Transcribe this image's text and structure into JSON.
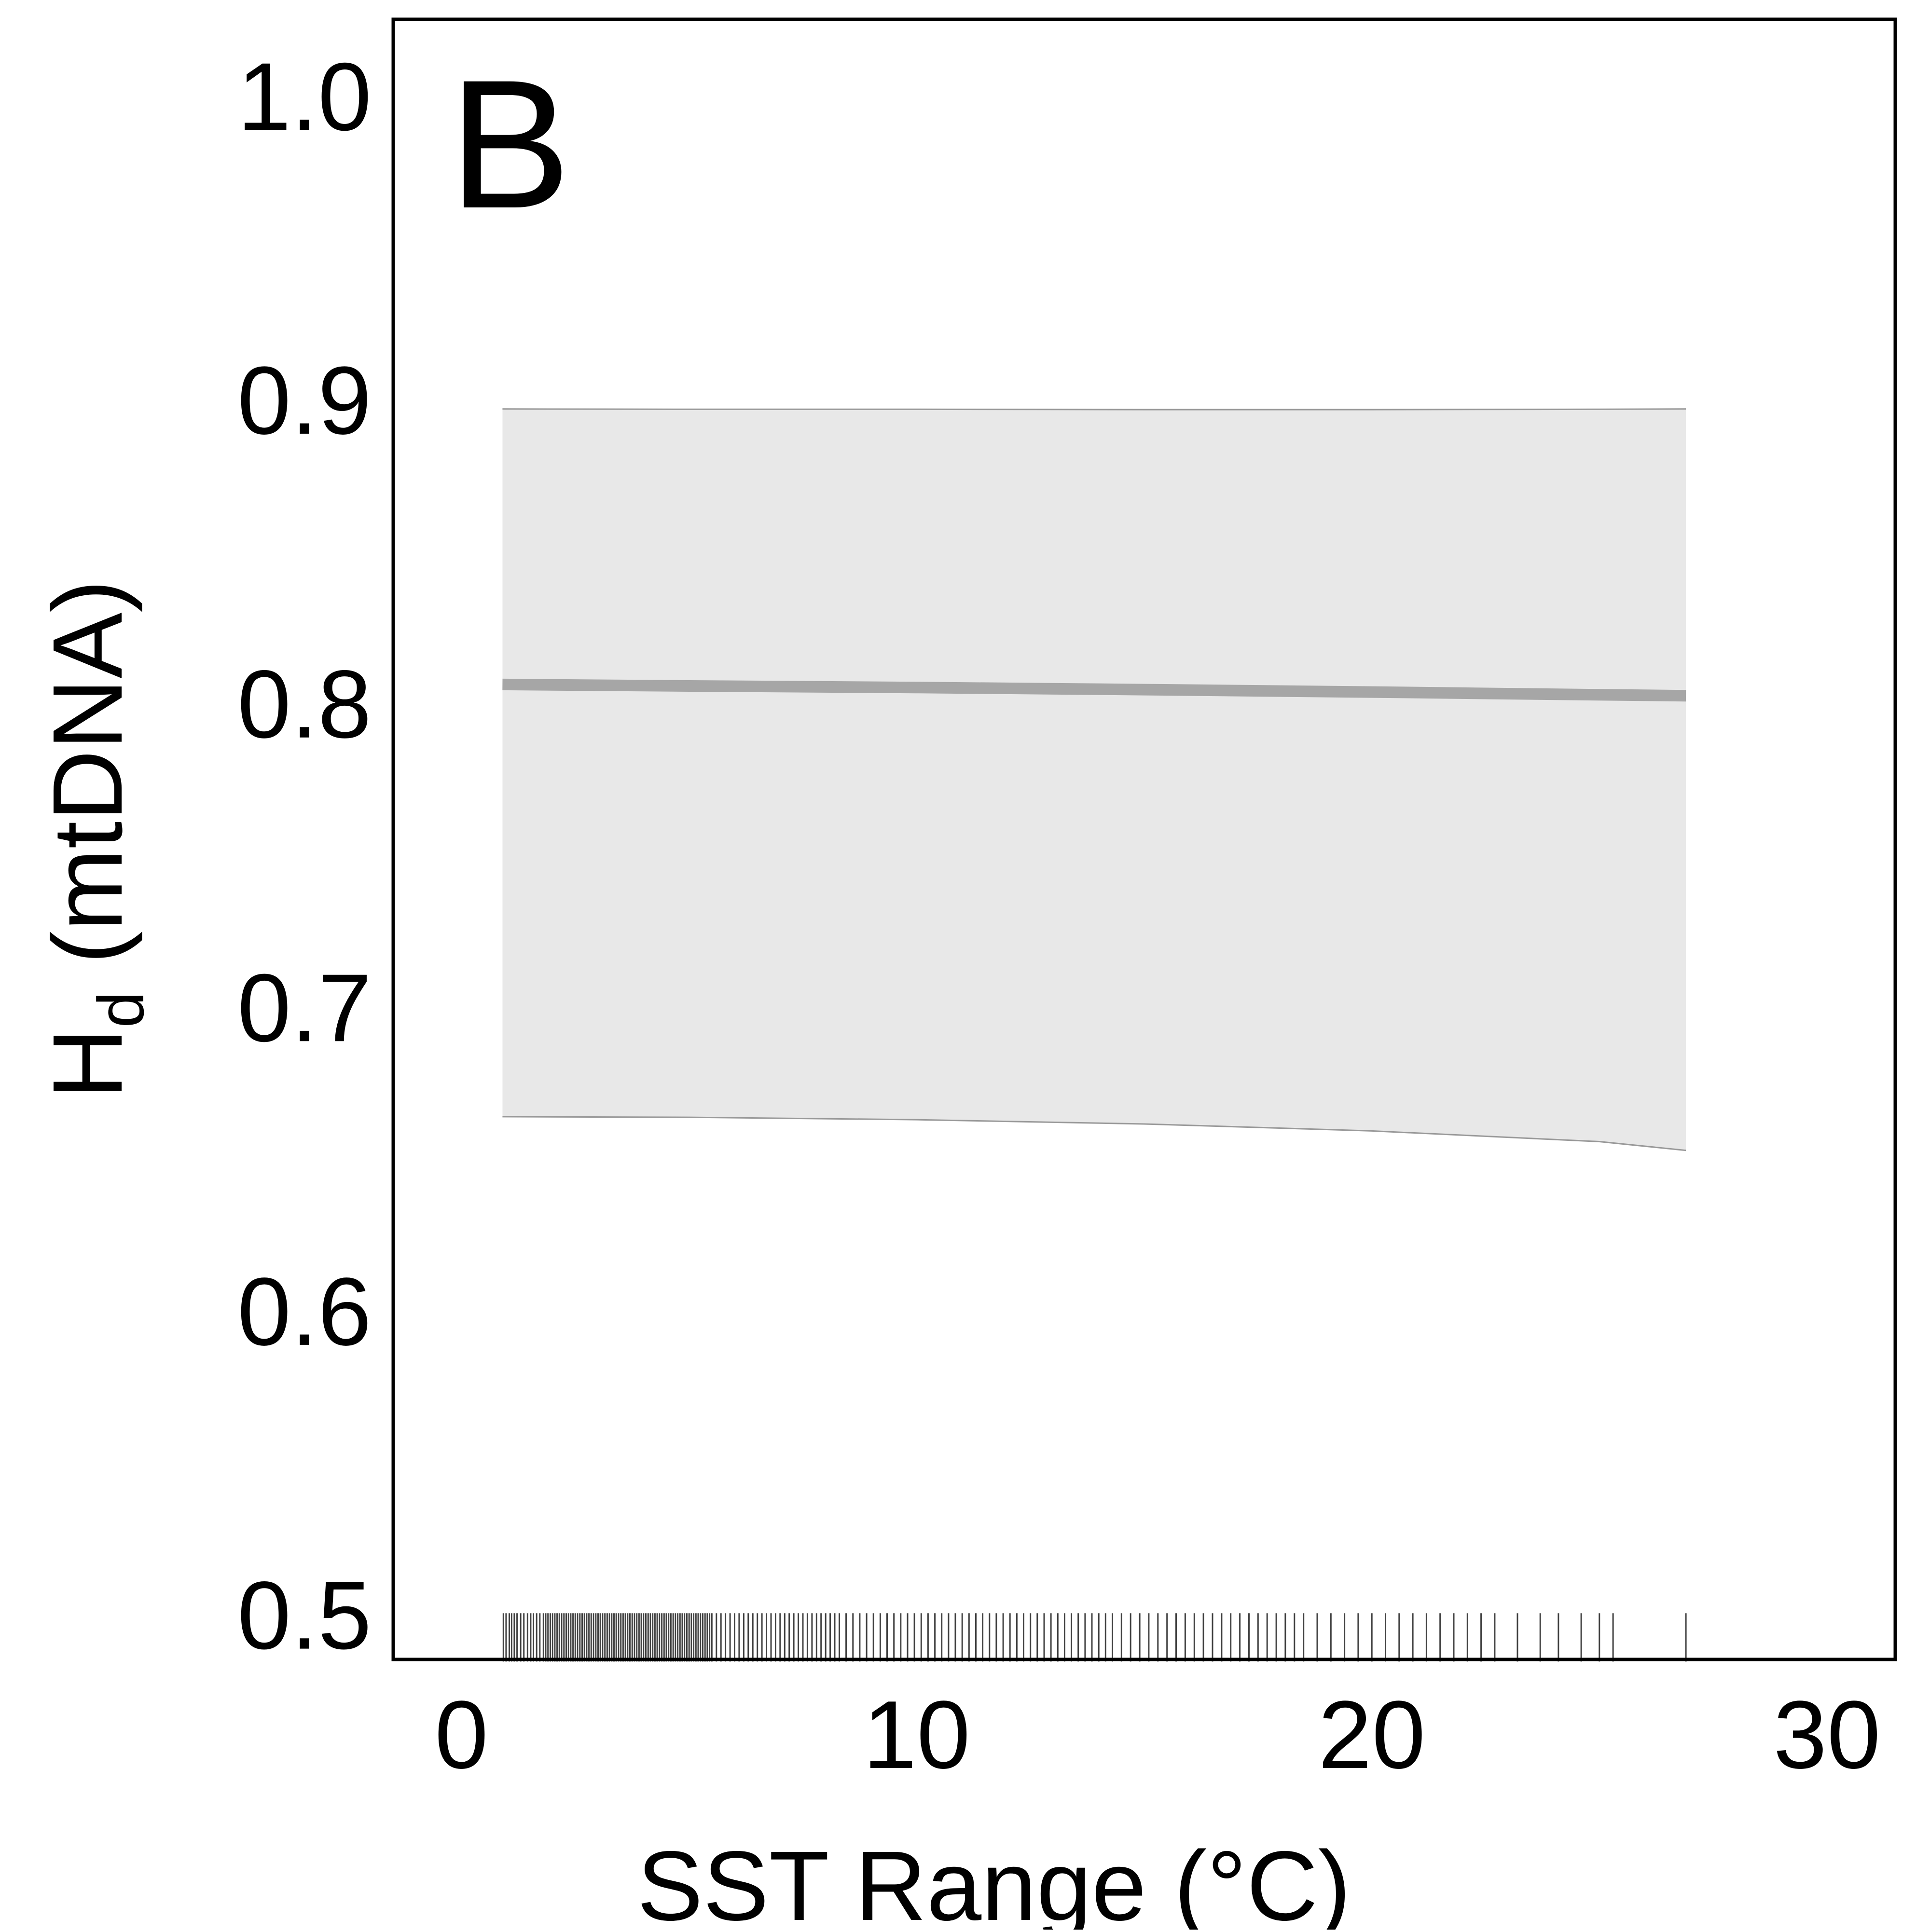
{
  "chart_data": {
    "type": "line",
    "panel_label": "B",
    "title": "",
    "xlabel": "SST Range (°C)",
    "ylabel": {
      "main": "H",
      "subscript": "d",
      "suffix": " (mtDNA)"
    },
    "xlim": [
      -1.5,
      31.5
    ],
    "ylim": [
      0.485,
      1.025
    ],
    "xticks": [
      0,
      10,
      20,
      30
    ],
    "yticks": [
      0.5,
      0.6,
      0.7,
      0.8,
      0.9,
      1.0
    ],
    "xtick_labels": [
      "0",
      "10",
      "20",
      "30"
    ],
    "ytick_labels": [
      "0.5",
      "0.6",
      "0.7",
      "0.8",
      "0.9",
      "1.0"
    ],
    "grid": false,
    "legend": "none",
    "colors": {
      "fit_line": "#a6a6a6",
      "confidence_band": "#e8e8e8",
      "band_edge": "#999999",
      "rug": "#000000",
      "axes": "#000000"
    },
    "series": [
      {
        "x": [
          0.9,
          5,
          10,
          15,
          20,
          25,
          26.9
        ],
        "y": [
          0.806,
          0.8055,
          0.805,
          0.8043,
          0.8035,
          0.8026,
          0.8023
        ],
        "ci_lower": [
          0.6637,
          0.6635,
          0.6627,
          0.6613,
          0.659,
          0.6555,
          0.6526
        ],
        "ci_upper": [
          0.8967,
          0.8966,
          0.8966,
          0.8965,
          0.8965,
          0.8966,
          0.8967
        ]
      }
    ],
    "rug_y_range": [
      0.4843,
      0.5002
    ],
    "rug_x": [
      0.92,
      0.98,
      1.05,
      1.1,
      1.16,
      1.22,
      1.3,
      1.37,
      1.45,
      1.52,
      1.58,
      1.65,
      1.72,
      1.8,
      1.85,
      1.9,
      1.95,
      2.0,
      2.05,
      2.1,
      2.15,
      2.2,
      2.25,
      2.3,
      2.35,
      2.4,
      2.45,
      2.5,
      2.55,
      2.6,
      2.65,
      2.7,
      2.75,
      2.8,
      2.85,
      2.9,
      2.95,
      3.0,
      3.05,
      3.1,
      3.15,
      3.2,
      3.25,
      3.3,
      3.35,
      3.4,
      3.45,
      3.5,
      3.55,
      3.6,
      3.65,
      3.7,
      3.75,
      3.8,
      3.85,
      3.9,
      3.95,
      4.0,
      4.05,
      4.1,
      4.15,
      4.2,
      4.25,
      4.3,
      4.35,
      4.4,
      4.45,
      4.5,
      4.55,
      4.6,
      4.65,
      4.7,
      4.75,
      4.8,
      4.85,
      4.9,
      4.95,
      5.0,
      5.05,
      5.1,
      5.15,
      5.2,
      5.25,
      5.3,
      5.35,
      5.4,
      5.45,
      5.5,
      5.6,
      5.7,
      5.8,
      5.9,
      6.0,
      6.1,
      6.2,
      6.3,
      6.4,
      6.5,
      6.6,
      6.7,
      6.8,
      6.9,
      7.0,
      7.1,
      7.2,
      7.3,
      7.4,
      7.5,
      7.6,
      7.7,
      7.8,
      7.9,
      8.0,
      8.1,
      8.2,
      8.3,
      8.45,
      8.6,
      8.75,
      8.9,
      9.05,
      9.2,
      9.35,
      9.5,
      9.65,
      9.8,
      9.95,
      10.1,
      10.25,
      10.4,
      10.55,
      10.7,
      10.85,
      11.0,
      11.15,
      11.3,
      11.45,
      11.6,
      11.75,
      11.9,
      12.05,
      12.2,
      12.35,
      12.5,
      12.65,
      12.8,
      12.95,
      13.1,
      13.25,
      13.4,
      13.55,
      13.7,
      13.85,
      14.0,
      14.15,
      14.3,
      14.5,
      14.7,
      14.9,
      15.1,
      15.3,
      15.5,
      15.7,
      15.9,
      16.1,
      16.3,
      16.5,
      16.7,
      16.9,
      17.1,
      17.3,
      17.5,
      17.7,
      17.9,
      18.1,
      18.3,
      18.5,
      18.8,
      19.1,
      19.4,
      19.7,
      20.0,
      20.3,
      20.6,
      20.9,
      21.2,
      21.5,
      21.8,
      22.1,
      22.4,
      22.7,
      23.2,
      23.7,
      24.1,
      24.6,
      25.0,
      25.3,
      26.9
    ]
  }
}
